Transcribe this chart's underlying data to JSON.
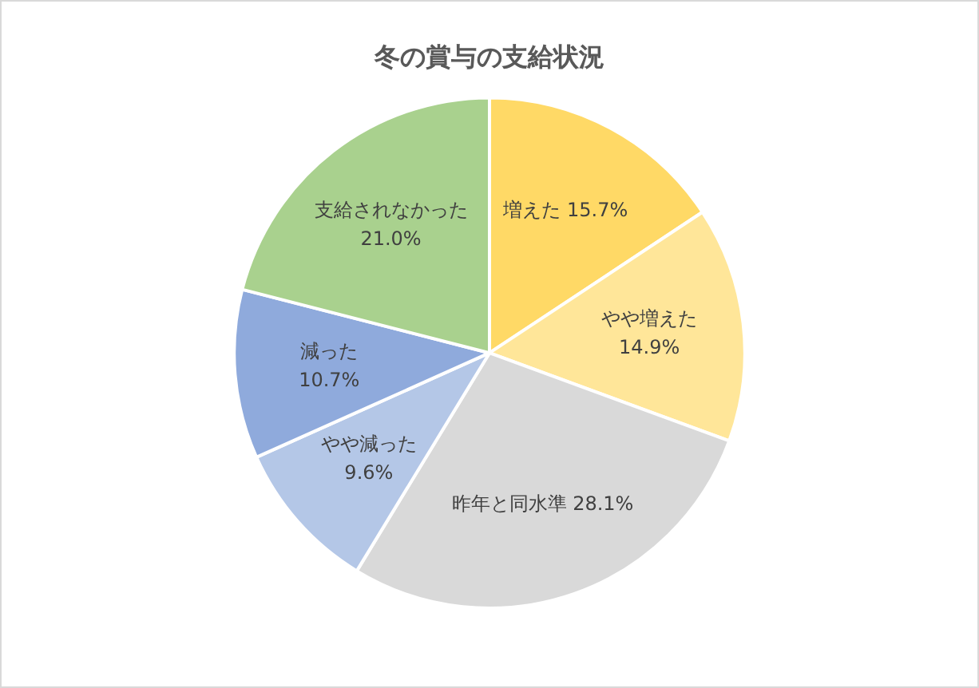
{
  "chart_data": {
    "type": "pie",
    "title": "冬の賞与の支給状況",
    "categories": [
      "増えた",
      "やや増えた",
      "昨年と同水準",
      "やや減った",
      "減った",
      "支給されなかった"
    ],
    "values": [
      15.7,
      14.9,
      28.1,
      9.6,
      10.7,
      21.0
    ],
    "value_labels": [
      "15.7%",
      "14.9%",
      "28.1%",
      "9.6%",
      "10.7%",
      "21.0%"
    ],
    "colors": [
      "#ffd966",
      "#ffe699",
      "#d9d9d9",
      "#b4c7e7",
      "#8faadc",
      "#a9d18e"
    ],
    "legend": false
  }
}
